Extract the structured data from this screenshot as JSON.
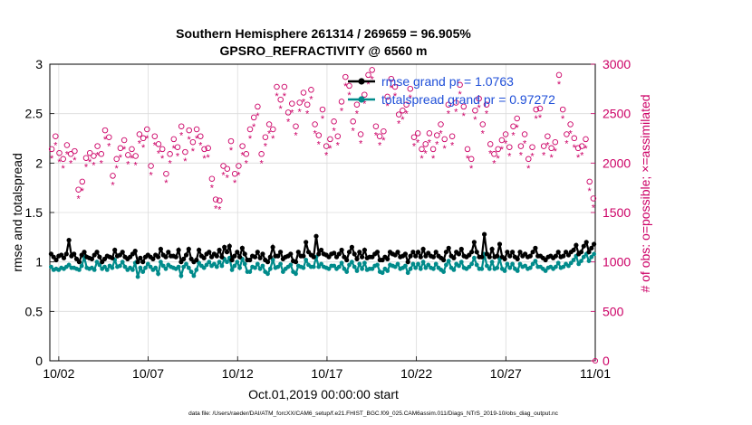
{
  "chart_data": {
    "type": "line",
    "title_lines": [
      "Southern Hemisphere 261314 / 269659 = 96.905%",
      "GPSRO_REFRACTIVITY @ 6560 m"
    ],
    "xlabel": "Oct.01,2019 00:00:00 start",
    "ylabel": "rmse and totalspread",
    "y2label": "# of obs: o=possible; ×=assimilated",
    "footnote": "data file: /Users/raeder/DAI/ATM_forcXX/CAM6_setup/f.e21.FHIST_BGC.f09_025.CAM6assim.011/Diags_NTrS_2019-10/obs_diag_output.nc",
    "x_tick_labels": [
      "10/02",
      "10/07",
      "10/12",
      "10/17",
      "10/22",
      "10/27",
      "11/01"
    ],
    "x_tick_days": [
      2,
      7,
      12,
      17,
      22,
      27,
      32
    ],
    "xlim_days": [
      1.5,
      32.0
    ],
    "ylim": [
      0,
      3
    ],
    "y_ticks": [
      "0",
      "0.5",
      "1",
      "1.5",
      "2",
      "2.5",
      "3"
    ],
    "y2lim": [
      0,
      3000
    ],
    "y2_ticks": [
      "0",
      "500",
      "1000",
      "1500",
      "2000",
      "2500",
      "3000"
    ],
    "grid": true,
    "legend_placement": "top-right",
    "colors": {
      "rmse": "#000000",
      "spread": "#008b8b",
      "obs": "#cc0066",
      "legend_text": "#1f4fd8",
      "grid": "#dcdcdc"
    },
    "legend": [
      {
        "key": "rmse",
        "label": "rmse grand pr = 1.0763"
      },
      {
        "key": "spread",
        "label": "totalspread grand pr = 0.97272"
      }
    ],
    "series": [
      {
        "key": "rmse",
        "values": [
          1.08,
          1.05,
          1.02,
          1.06,
          1.07,
          1.04,
          1.08,
          1.22,
          1.06,
          1.08,
          1.03,
          1.0,
          1.07,
          1.1,
          1.05,
          1.04,
          1.03,
          1.07,
          1.1,
          1.05,
          1.0,
          1.03,
          1.06,
          1.05,
          1.04,
          1.12,
          1.06,
          1.07,
          1.1,
          1.05,
          1.03,
          1.05,
          1.08,
          1.11,
          1.0,
          1.04,
          1.0,
          1.05,
          1.07,
          1.05,
          1.03,
          1.07,
          1.05,
          1.13,
          1.07,
          1.05,
          1.1,
          1.06,
          1.06,
          1.05,
          1.12,
          1.0,
          1.03,
          1.07,
          1.13,
          1.03,
          1.0,
          1.02,
          1.12,
          1.06,
          1.04,
          1.08,
          1.1,
          1.05,
          1.08,
          1.06,
          1.12,
          1.05,
          1.15,
          1.1,
          1.16,
          1.02,
          1.06,
          1.1,
          1.05,
          1.14,
          1.08,
          1.02,
          1.02,
          1.06,
          1.05,
          1.1,
          1.04,
          1.08,
          1.02,
          1.0,
          1.05,
          1.15,
          1.06,
          1.06,
          1.1,
          1.03,
          1.05,
          1.06,
          1.08,
          1.01,
          1.0,
          1.1,
          1.06,
          1.06,
          1.2,
          1.1,
          1.07,
          1.05,
          1.26,
          1.08,
          1.12,
          1.08,
          1.07,
          1.05,
          1.08,
          1.09,
          1.05,
          1.08,
          1.12,
          1.05,
          1.02,
          1.1,
          1.15,
          1.08,
          1.03,
          1.1,
          1.05,
          1.12,
          1.04,
          1.05,
          1.05,
          1.08,
          1.1,
          1.02,
          1.02,
          1.05,
          1.03,
          1.1,
          1.08,
          1.07,
          1.1,
          1.05,
          1.06,
          1.08,
          1.0,
          1.06,
          1.1,
          1.06,
          1.1,
          1.05,
          1.13,
          1.06,
          1.09,
          1.06,
          1.05,
          1.1,
          1.06,
          1.04,
          1.02,
          1.1,
          1.14,
          1.06,
          1.04,
          1.1,
          1.08,
          1.13,
          1.06,
          1.05,
          1.07,
          1.1,
          1.2,
          1.1,
          1.05,
          1.05,
          1.28,
          1.08,
          1.05,
          1.13,
          1.05,
          1.06,
          1.18,
          1.05,
          1.03,
          1.1,
          1.06,
          1.1,
          1.05,
          1.03,
          1.1,
          1.06,
          1.08,
          1.05,
          1.06,
          1.1,
          1.14,
          1.06,
          1.06,
          1.04,
          1.02,
          1.05,
          1.06,
          1.04,
          1.06,
          1.1,
          1.05,
          1.06,
          1.1,
          1.07,
          1.1,
          1.12,
          1.17,
          1.08,
          1.1,
          1.16,
          1.2,
          1.1,
          1.14,
          1.18
        ]
      },
      {
        "key": "spread",
        "values": [
          0.95,
          0.92,
          0.93,
          0.92,
          0.94,
          0.93,
          0.95,
          0.97,
          0.94,
          0.94,
          0.93,
          0.92,
          0.96,
          1.05,
          0.94,
          0.93,
          0.94,
          0.92,
          1.0,
          0.97,
          0.93,
          0.95,
          0.92,
          0.96,
          0.94,
          1.02,
          0.95,
          0.96,
          1.0,
          0.95,
          0.92,
          0.94,
          0.92,
          0.99,
          0.85,
          0.94,
          0.9,
          0.94,
          0.98,
          0.95,
          0.92,
          0.94,
          0.88,
          1.0,
          0.96,
          0.93,
          0.97,
          0.95,
          0.94,
          0.93,
          0.95,
          0.86,
          0.95,
          0.98,
          0.94,
          0.9,
          0.86,
          0.92,
          0.99,
          0.96,
          0.94,
          0.97,
          1.0,
          0.96,
          0.98,
          0.95,
          1.0,
          0.96,
          1.03,
          1.0,
          1.04,
          0.92,
          0.96,
          1.0,
          0.94,
          1.03,
          0.98,
          0.9,
          0.9,
          0.95,
          0.94,
          0.98,
          0.93,
          0.96,
          0.9,
          0.88,
          0.93,
          1.02,
          0.94,
          0.95,
          0.98,
          0.9,
          0.93,
          0.95,
          0.97,
          0.9,
          0.88,
          0.96,
          0.95,
          0.94,
          1.02,
          0.97,
          0.95,
          0.95,
          1.05,
          0.95,
          0.98,
          0.95,
          0.94,
          0.93,
          0.96,
          0.96,
          0.93,
          0.95,
          0.99,
          0.93,
          0.9,
          0.97,
          1.0,
          0.95,
          0.91,
          0.98,
          0.93,
          0.99,
          0.92,
          0.93,
          0.93,
          0.96,
          0.97,
          0.9,
          0.89,
          0.93,
          0.91,
          0.97,
          0.96,
          0.95,
          0.98,
          0.93,
          0.94,
          0.96,
          0.89,
          0.93,
          0.98,
          0.94,
          0.98,
          0.93,
          1.0,
          0.94,
          0.97,
          0.94,
          0.93,
          0.98,
          0.94,
          0.92,
          0.9,
          0.97,
          1.01,
          0.94,
          0.92,
          0.98,
          0.96,
          1.0,
          0.94,
          0.93,
          0.95,
          0.98,
          1.04,
          0.97,
          0.93,
          0.93,
          1.08,
          0.96,
          0.93,
          1.0,
          0.93,
          0.94,
          1.03,
          0.93,
          0.91,
          0.98,
          0.94,
          0.98,
          0.93,
          0.91,
          0.98,
          0.95,
          0.96,
          0.93,
          0.94,
          0.98,
          1.01,
          0.95,
          0.95,
          0.93,
          0.91,
          0.94,
          0.95,
          0.93,
          0.95,
          0.99,
          0.94,
          0.95,
          0.98,
          0.96,
          0.99,
          1.02,
          1.06,
          0.98,
          1.01,
          1.05,
          1.08,
          1.01,
          1.05,
          1.08
        ]
      },
      {
        "key": "possible",
        "values": [
          2050,
          2180,
          2010,
          1950,
          2090,
          2000,
          2030,
          1640,
          1720,
          1960,
          2010,
          1980,
          2080,
          2000,
          2240,
          2170,
          1780,
          1950,
          2060,
          2140,
          1990,
          2050,
          1980,
          2200,
          2160,
          2250,
          1880,
          2180,
          2100,
          2050,
          1800,
          2000,
          2150,
          2070,
          2280,
          2020,
          2240,
          2120,
          2250,
          2180,
          2050,
          2060,
          1750,
          1540,
          1530,
          1880,
          1850,
          2130,
          1800,
          1880,
          2080,
          2000,
          2250,
          2370,
          2480,
          2000,
          2170,
          2300,
          2250,
          2680,
          2550,
          2680,
          2420,
          2510,
          2280,
          2520,
          2620,
          2500,
          2650,
          2300,
          2190,
          2450,
          2080,
          2150,
          2330,
          2180,
          2530,
          2780,
          2690,
          2330,
          2500,
          2200,
          2600,
          2800,
          2850,
          2280,
          2180,
          2230,
          2580,
          2760,
          2680,
          2400,
          2440,
          2500,
          2660,
          2170,
          2210,
          2050,
          2100,
          2210,
          2050,
          2190,
          2300,
          2150,
          2500,
          2180,
          2520,
          2700,
          2480,
          2050,
          1950,
          2440,
          2560,
          2300,
          2500,
          2100,
          2000,
          2050,
          2140,
          2200,
          2070,
          2280,
          2360,
          2080,
          2200,
          1950,
          2070,
          2450,
          2460,
          2080,
          2180,
          2060,
          2120,
          2800,
          2450,
          2200,
          2300,
          2160,
          2060,
          2080,
          2150,
          1720,
          1550
        ]
      },
      {
        "key": "assimilated",
        "values": [
          2050,
          2180,
          2010,
          1950,
          2090,
          2000,
          2030,
          1640,
          1720,
          1960,
          2010,
          1980,
          2080,
          2000,
          2240,
          2170,
          1780,
          1950,
          2060,
          2140,
          1990,
          2050,
          1980,
          2200,
          2160,
          2250,
          1880,
          2180,
          2100,
          2050,
          1800,
          2000,
          2150,
          2070,
          2280,
          2020,
          2240,
          2120,
          2250,
          2180,
          2050,
          2060,
          1750,
          1540,
          1530,
          1880,
          1850,
          2130,
          1800,
          1880,
          2080,
          2000,
          2250,
          2370,
          2480,
          2000,
          2170,
          2300,
          2250,
          2680,
          2550,
          2680,
          2420,
          2510,
          2280,
          2520,
          2620,
          2500,
          2650,
          2300,
          2190,
          2450,
          2080,
          2150,
          2330,
          2180,
          2530,
          2780,
          2690,
          2330,
          2500,
          2200,
          2600,
          2800,
          2850,
          2280,
          2180,
          2230,
          2580,
          2760,
          2680,
          2400,
          2440,
          2500,
          2660,
          2170,
          2210,
          2050,
          2100,
          2210,
          2050,
          2190,
          2300,
          2150,
          2500,
          2180,
          2520,
          2700,
          2480,
          2050,
          1950,
          2440,
          2560,
          2300,
          2500,
          2100,
          2000,
          2050,
          2140,
          2200,
          2070,
          2280,
          2360,
          2080,
          2200,
          1950,
          2070,
          2450,
          2460,
          2080,
          2180,
          2060,
          2120,
          2800,
          2450,
          2200,
          2300,
          2160,
          2060,
          2080,
          2150,
          1720,
          1550
        ]
      }
    ]
  }
}
